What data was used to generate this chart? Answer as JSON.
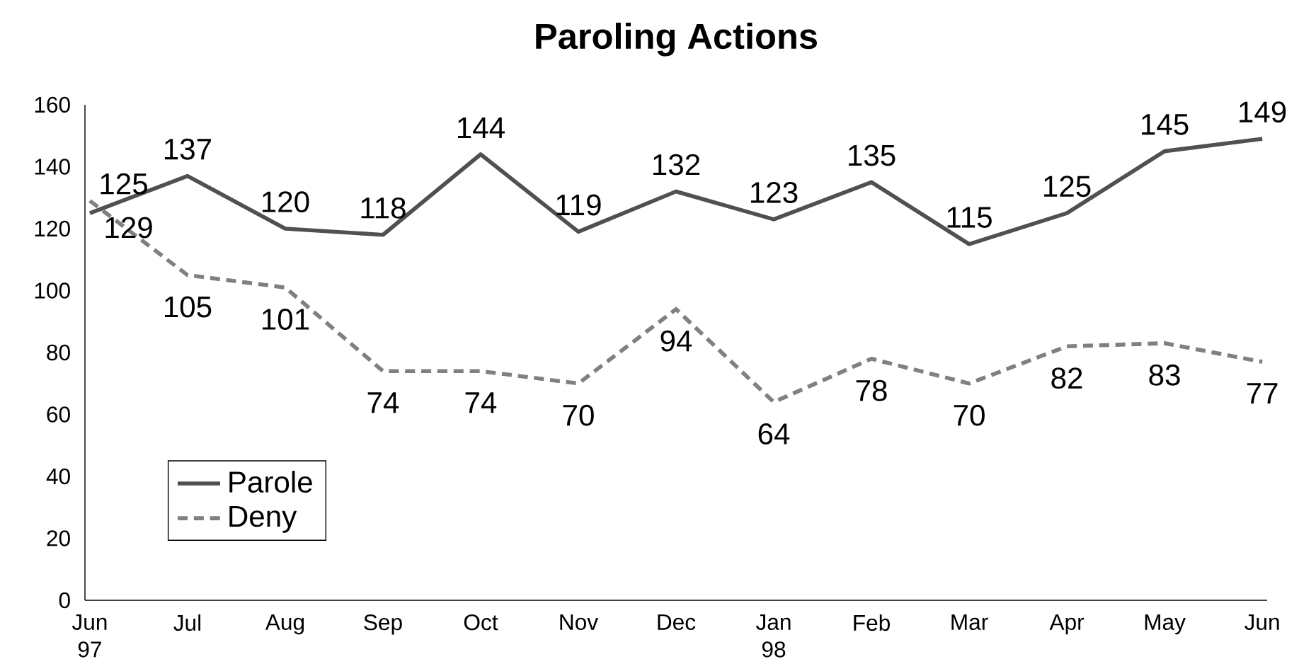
{
  "chart_data": {
    "type": "line",
    "title": "Paroling Actions",
    "categories": [
      "Jun 97",
      "Jul",
      "Aug",
      "Sep",
      "Oct",
      "Nov",
      "Dec",
      "Jan 98",
      "Feb",
      "Mar",
      "Apr",
      "May",
      "Jun"
    ],
    "series": [
      {
        "name": "Parole",
        "color": "#505050",
        "line_style": "solid",
        "values": [
          125,
          137,
          120,
          118,
          144,
          119,
          132,
          123,
          135,
          115,
          125,
          145,
          149
        ]
      },
      {
        "name": "Deny",
        "color": "#808080",
        "line_style": "dashed",
        "values": [
          129,
          105,
          101,
          74,
          74,
          70,
          94,
          64,
          78,
          70,
          82,
          83,
          77
        ]
      }
    ],
    "ylim": [
      0,
      160
    ],
    "yticks": [
      0,
      20,
      40,
      60,
      80,
      100,
      120,
      140,
      160
    ],
    "data_labels": true,
    "legend": "bottom left",
    "grid": false,
    "marker": "none"
  }
}
